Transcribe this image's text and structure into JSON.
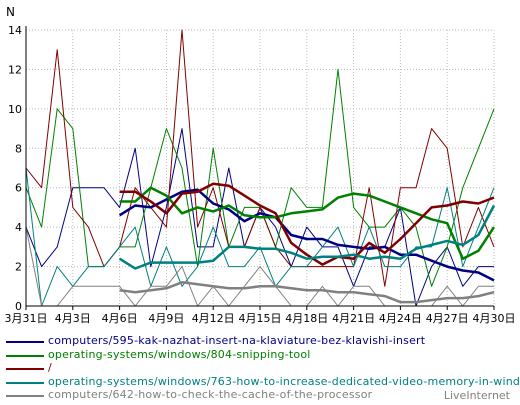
{
  "chart_data": {
    "type": "line",
    "ylabel": "N",
    "xlabel": "",
    "ylim": [
      0,
      14
    ],
    "yticks": [
      0,
      2,
      4,
      6,
      8,
      10,
      12,
      14
    ],
    "grid": true,
    "legend_position": "bottom",
    "x": [
      "3月31日",
      "4月1日",
      "4月2日",
      "4月3日",
      "4月4日",
      "4月5日",
      "4月6日",
      "4月7日",
      "4月8日",
      "4月9日",
      "4月10日",
      "4月11日",
      "4月12日",
      "4月13日",
      "4月14日",
      "4月15日",
      "4月16日",
      "4月17日",
      "4月18日",
      "4月19日",
      "4月20日",
      "4月21日",
      "4月22日",
      "4月23日",
      "4月24日",
      "4月25日",
      "4月26日",
      "4月27日",
      "4月28日",
      "4月29日",
      "4月30日"
    ],
    "xtick_labels": [
      "3月31日",
      "4月3日",
      "4月6日",
      "4月9日",
      "4月12日",
      "4月15日",
      "4月18日",
      "4月21日",
      "4月24日",
      "4月27日",
      "4月30日"
    ],
    "xtick_indices": [
      0,
      3,
      6,
      9,
      12,
      15,
      18,
      21,
      24,
      27,
      30
    ],
    "series": [
      {
        "name": "computers/595-kak-nazhat-insert-na-klaviature-bez-klavishi-insert",
        "color": "#000080",
        "values": [
          4,
          2,
          3,
          6,
          6,
          6,
          5,
          8,
          2,
          5,
          9,
          3,
          3,
          7,
          3,
          5,
          4,
          2,
          4,
          3,
          3,
          1,
          3,
          3,
          5,
          0,
          2,
          3,
          1,
          2,
          2
        ],
        "average": [
          null,
          null,
          null,
          null,
          null,
          null,
          4.6,
          5.1,
          5.0,
          5.4,
          5.8,
          5.9,
          5.2,
          4.9,
          4.3,
          4.7,
          4.5,
          3.6,
          3.4,
          3.4,
          3.1,
          3.0,
          2.9,
          3.0,
          2.6,
          2.6,
          2.3,
          2.0,
          1.8,
          1.7,
          1.3
        ]
      },
      {
        "name": "operating-systems/windows/804-snipping-tool",
        "color": "#008000",
        "values": [
          6,
          4,
          10,
          9,
          2,
          2,
          3,
          3,
          6,
          9,
          7,
          2,
          8,
          3,
          5,
          5,
          3,
          6,
          5,
          5,
          12,
          5,
          4,
          4,
          5,
          4,
          1,
          3,
          6,
          8,
          10
        ],
        "average": [
          null,
          null,
          null,
          null,
          null,
          null,
          5.3,
          5.3,
          6.0,
          5.6,
          4.7,
          5.0,
          4.8,
          5.1,
          4.6,
          4.5,
          4.5,
          4.7,
          4.8,
          4.9,
          5.5,
          5.7,
          5.6,
          5.3,
          5.0,
          4.7,
          4.4,
          4.2,
          2.4,
          2.8,
          4.0
        ]
      },
      {
        "name": "/",
        "color": "#800000",
        "values": [
          7,
          6,
          13,
          5,
          4,
          2,
          3,
          6,
          5,
          4,
          14,
          4,
          6,
          3,
          3,
          5,
          3,
          2,
          2,
          2,
          2,
          2,
          6,
          1,
          6,
          6,
          9,
          8,
          3,
          5,
          3
        ],
        "average": [
          null,
          null,
          null,
          null,
          null,
          null,
          5.8,
          5.8,
          5.3,
          4.7,
          5.7,
          5.8,
          6.2,
          6.1,
          5.6,
          5.1,
          4.7,
          3.2,
          2.6,
          2.1,
          2.5,
          2.4,
          3.2,
          2.7,
          3.4,
          4.2,
          5.0,
          5.1,
          5.3,
          5.2,
          5.5
        ]
      },
      {
        "name": "operating-systems/windows/763-how-to-increase-dedicated-video-memory-in-windows-10",
        "color": "#008080",
        "values": [
          7,
          0,
          2,
          1,
          2,
          2,
          3,
          4,
          1,
          3,
          1,
          2,
          4,
          2,
          2,
          3,
          1,
          2,
          2,
          3,
          4,
          2,
          4,
          2,
          2,
          3,
          3,
          6,
          2,
          4,
          6
        ],
        "average": [
          null,
          null,
          null,
          null,
          null,
          null,
          2.4,
          1.9,
          2.2,
          2.2,
          2.2,
          2.2,
          2.3,
          3.0,
          3.0,
          2.9,
          2.9,
          2.7,
          2.4,
          2.5,
          2.5,
          2.6,
          2.4,
          2.5,
          2.4,
          2.9,
          3.1,
          3.3,
          3.1,
          3.6,
          5.1
        ]
      },
      {
        "name": "computers/642-how-to-check-the-cache-of-the-processor",
        "color": "#808080",
        "values": [
          4,
          0,
          0,
          1,
          1,
          1,
          1,
          0,
          1,
          1,
          2,
          0,
          1,
          0,
          1,
          2,
          1,
          0,
          0,
          1,
          0,
          1,
          1,
          0,
          0,
          0,
          0,
          1,
          0,
          1,
          1
        ],
        "average": [
          null,
          null,
          null,
          null,
          null,
          null,
          0.8,
          0.7,
          0.8,
          0.9,
          1.2,
          1.1,
          1.0,
          0.9,
          0.9,
          1.0,
          1.0,
          0.9,
          0.8,
          0.8,
          0.7,
          0.7,
          0.6,
          0.5,
          0.2,
          0.2,
          0.3,
          0.4,
          0.4,
          0.5,
          0.7
        ]
      }
    ]
  },
  "credit": "LiveInternet"
}
